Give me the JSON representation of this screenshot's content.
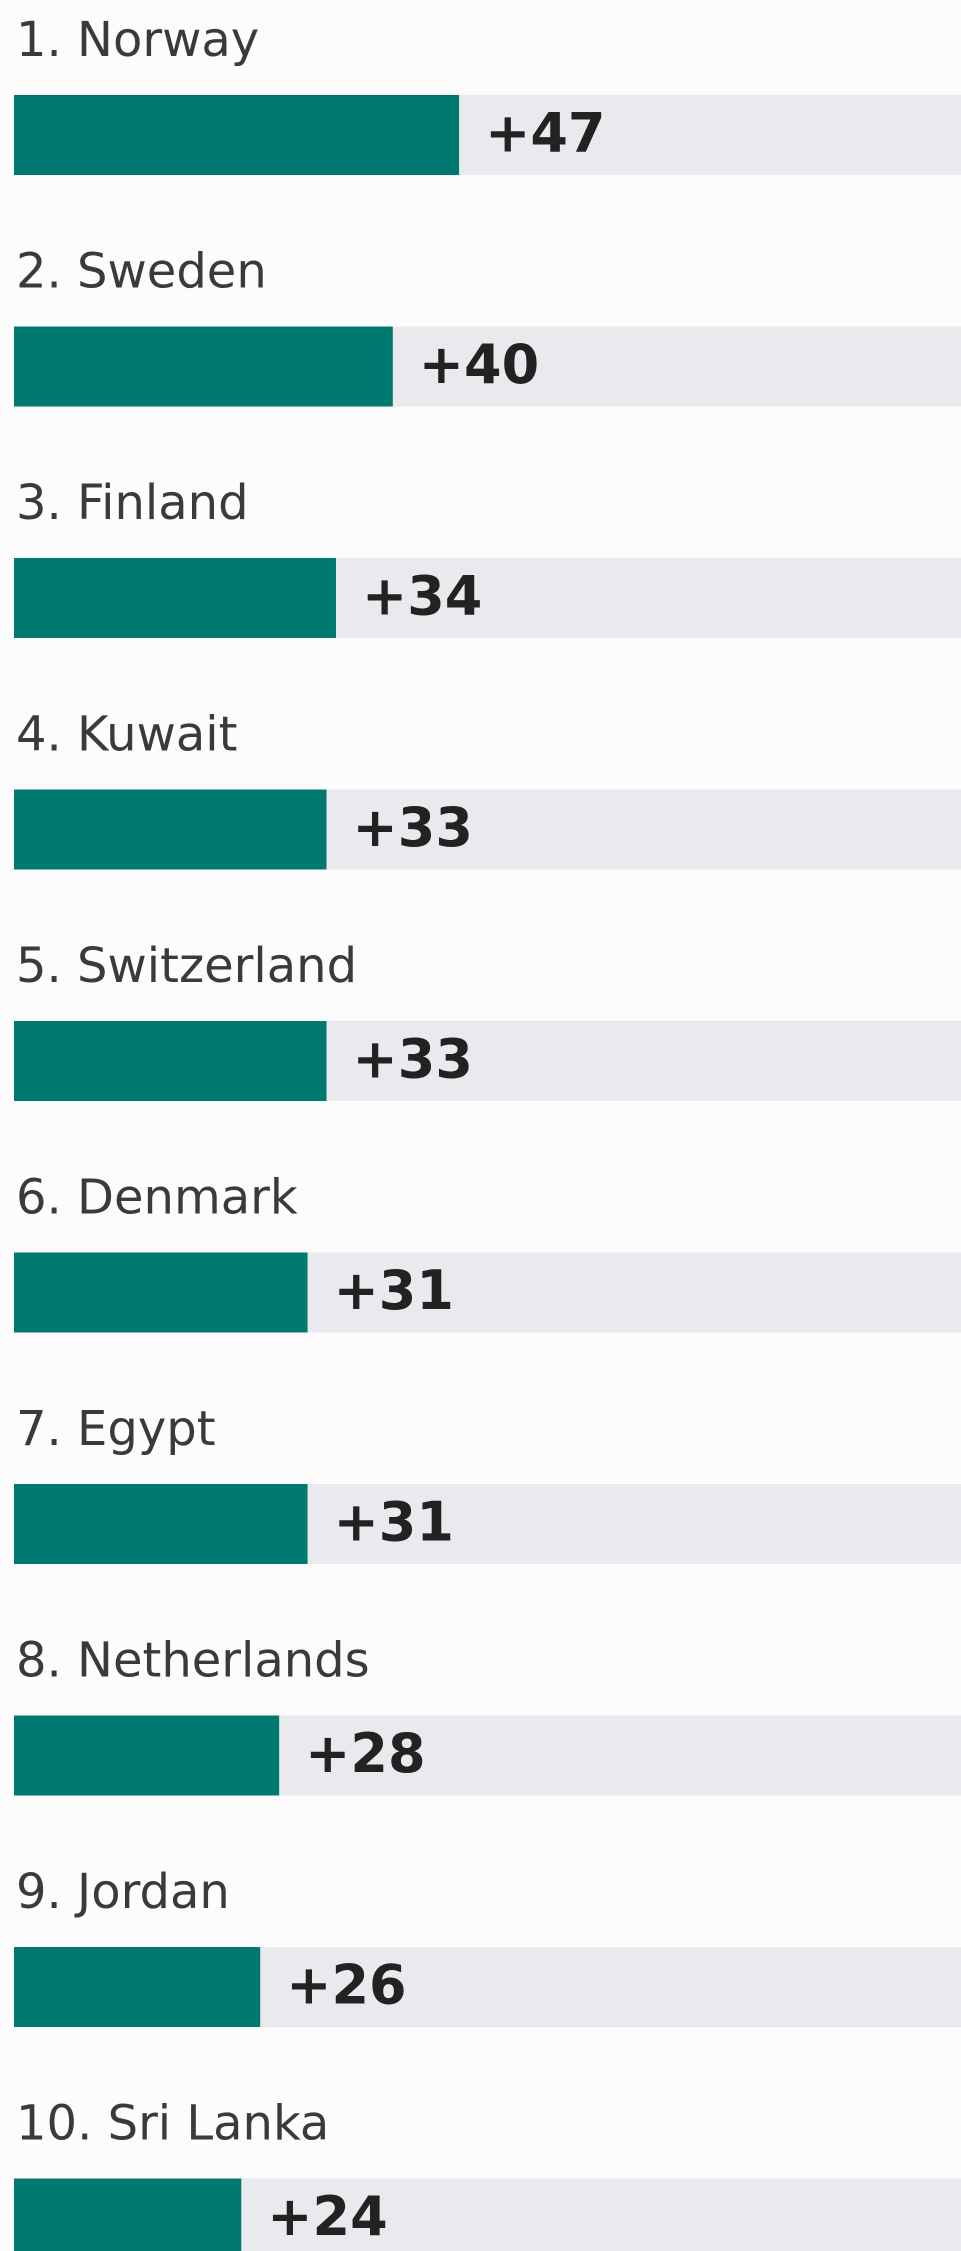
{
  "chart_data": {
    "type": "bar",
    "categories": [
      "1. Norway",
      "2. Sweden",
      "3. Finland",
      "4. Kuwait",
      "5. Switzerland",
      "6. Denmark",
      "7. Egypt",
      "8. Netherlands",
      "9. Jordan",
      "10. Sri Lanka"
    ],
    "values": [
      47,
      40,
      34,
      33,
      33,
      31,
      31,
      28,
      26,
      24
    ],
    "value_labels": [
      "+47",
      "+40",
      "+34",
      "+33",
      "+33",
      "+31",
      "+31",
      "+28",
      "+26",
      "+24"
    ],
    "color": "#007a70",
    "xlim": [
      0,
      100
    ]
  }
}
